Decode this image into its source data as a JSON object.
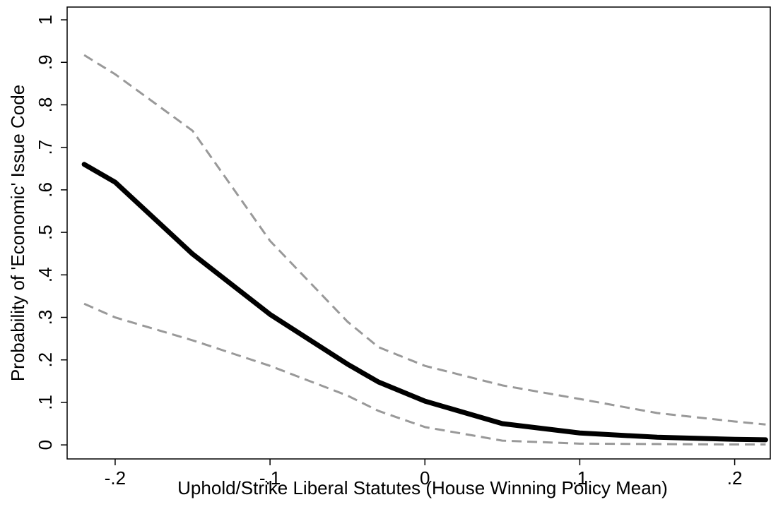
{
  "chart_data": {
    "type": "line",
    "x_label": "Uphold/Strike Liberal Statutes (House Winning Policy Mean)",
    "y_label": "Probability of 'Economic' Issue Code",
    "x": [
      -0.22,
      -0.2,
      -0.15,
      -0.1,
      -0.05,
      -0.03,
      0,
      0.05,
      0.1,
      0.15,
      0.2,
      0.22
    ],
    "series": [
      {
        "color": "#000000",
        "dashed": false,
        "values": [
          0.66,
          0.618,
          0.449,
          0.307,
          0.19,
          0.148,
          0.103,
          0.05,
          0.028,
          0.018,
          0.013,
          0.012
        ]
      },
      {
        "color": "#999999",
        "dashed": true,
        "values": [
          0.917,
          0.872,
          0.739,
          0.48,
          0.29,
          0.23,
          0.186,
          0.14,
          0.108,
          0.075,
          0.055,
          0.048
        ]
      },
      {
        "color": "#999999",
        "dashed": true,
        "values": [
          0.332,
          0.3,
          0.246,
          0.186,
          0.116,
          0.08,
          0.042,
          0.01,
          0.003,
          0.002,
          0.001,
          0.001
        ]
      }
    ],
    "xlim": [
      -0.231,
      0.223
    ],
    "ylim": [
      -0.033,
      1.03
    ],
    "xticks": [
      {
        "value": -0.2,
        "label": "-.2"
      },
      {
        "value": -0.1,
        "label": "-.1"
      },
      0,
      {
        "value": 0.1,
        "label": ".1"
      },
      {
        "value": 0.2,
        "label": ".2"
      }
    ],
    "yticks": [
      0,
      {
        "value": 0.1,
        "label": ".1"
      },
      {
        "value": 0.2,
        "label": ".2"
      },
      {
        "value": 0.3,
        "label": ".3"
      },
      {
        "value": 0.4,
        "label": ".4"
      },
      {
        "value": 0.5,
        "label": ".5"
      },
      {
        "value": 0.6,
        "label": ".6"
      },
      {
        "value": 0.7,
        "label": ".7"
      },
      {
        "value": 0.8,
        "label": ".8"
      },
      {
        "value": 0.9,
        "label": ".9"
      },
      1
    ]
  }
}
